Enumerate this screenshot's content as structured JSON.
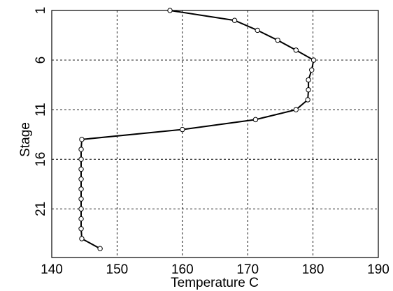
{
  "chart_data": {
    "type": "line",
    "title": "",
    "xlabel": "Temperature C",
    "ylabel": "Stage",
    "xlim": [
      140,
      190
    ],
    "ylim": [
      1,
      25
    ],
    "y_reversed": true,
    "grid": true,
    "x_ticks": [
      140,
      150,
      160,
      170,
      180,
      190
    ],
    "x_tick_labels": [
      "140",
      "150",
      "160",
      "170",
      "180",
      "190"
    ],
    "y_ticks": [
      1,
      6,
      11,
      16,
      21
    ],
    "y_tick_labels": [
      "1",
      "6",
      "11",
      "16",
      "21"
    ],
    "series": [
      {
        "color": "#000000",
        "marker": "open-circle",
        "points": [
          {
            "stage": 1,
            "temperature": 158.1
          },
          {
            "stage": 2,
            "temperature": 168.0
          },
          {
            "stage": 3,
            "temperature": 171.5
          },
          {
            "stage": 4,
            "temperature": 174.6
          },
          {
            "stage": 5,
            "temperature": 177.4
          },
          {
            "stage": 6,
            "temperature": 180.1
          },
          {
            "stage": 7,
            "temperature": 179.8
          },
          {
            "stage": 8,
            "temperature": 179.3
          },
          {
            "stage": 9,
            "temperature": 179.3
          },
          {
            "stage": 10,
            "temperature": 179.2
          },
          {
            "stage": 11,
            "temperature": 177.4
          },
          {
            "stage": 12,
            "temperature": 171.2
          },
          {
            "stage": 13,
            "temperature": 160.0
          },
          {
            "stage": 14,
            "temperature": 144.6
          },
          {
            "stage": 15,
            "temperature": 144.5
          },
          {
            "stage": 16,
            "temperature": 144.5
          },
          {
            "stage": 17,
            "temperature": 144.5
          },
          {
            "stage": 18,
            "temperature": 144.5
          },
          {
            "stage": 19,
            "temperature": 144.5
          },
          {
            "stage": 20,
            "temperature": 144.5
          },
          {
            "stage": 21,
            "temperature": 144.5
          },
          {
            "stage": 22,
            "temperature": 144.5
          },
          {
            "stage": 23,
            "temperature": 144.5
          },
          {
            "stage": 24,
            "temperature": 144.6
          },
          {
            "stage": 25,
            "temperature": 147.4
          }
        ]
      }
    ]
  }
}
